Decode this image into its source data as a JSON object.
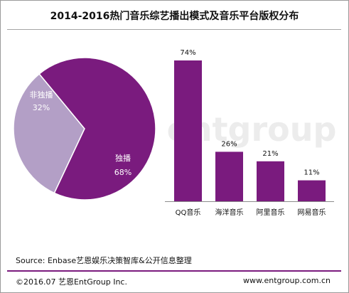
{
  "title": "2014-2016热门音乐综艺播出模式及音乐平台版权分布",
  "watermark": "艺恩 entgroup",
  "source": "Source: Enbase艺恩娱乐决策智库&公开信息整理",
  "footer": {
    "copyright": "©2016.07 艺恩EntGroup Inc.",
    "website": "www.entgroup.com.cn"
  },
  "colors": {
    "primary": "#7a1b7e",
    "secondary": "#b39fc6",
    "accent_line": "#7a1b7e"
  },
  "chart_data": [
    {
      "type": "pie",
      "labels": [
        "非独播",
        "独播"
      ],
      "values": [
        32,
        68
      ],
      "value_labels": [
        "32%",
        "68%"
      ],
      "colors": [
        "#b39fc6",
        "#7a1b7e"
      ]
    },
    {
      "type": "bar",
      "categories": [
        "QQ音乐",
        "海洋音乐",
        "阿里音乐",
        "网易音乐"
      ],
      "values": [
        74,
        26,
        21,
        11
      ],
      "value_labels": [
        "74%",
        "26%",
        "21%",
        "11%"
      ],
      "color": "#7a1b7e",
      "ylim": [
        0,
        74
      ]
    }
  ]
}
